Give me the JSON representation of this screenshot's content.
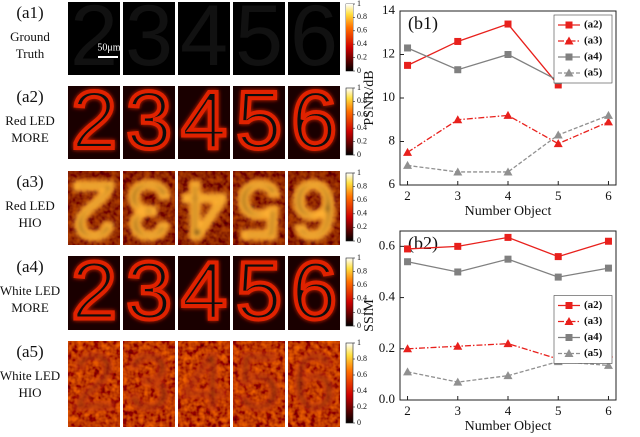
{
  "image_panels": {
    "digits": [
      "2",
      "3",
      "4",
      "5",
      "6"
    ],
    "scale_bar": "50μm",
    "colorbar_ticks": [
      0,
      0.2,
      0.4,
      0.6,
      0.8,
      1
    ],
    "rows": [
      {
        "label": "(a1)",
        "caption": [
          "Ground",
          "Truth"
        ]
      },
      {
        "label": "(a2)",
        "caption": [
          "Red LED",
          "MORE"
        ]
      },
      {
        "label": "(a3)",
        "caption": [
          "Red LED",
          "HIO"
        ]
      },
      {
        "label": "(a4)",
        "caption": [
          "White LED",
          "MORE"
        ]
      },
      {
        "label": "(a5)",
        "caption": [
          "White LED",
          "HIO"
        ]
      }
    ]
  },
  "chart_data": [
    {
      "type": "line",
      "panel_label": "(b1)",
      "x_label": "Number Object",
      "y_label": "PSNR/dB",
      "x": [
        2,
        3,
        4,
        5,
        6
      ],
      "xlim": [
        1.85,
        6.15
      ],
      "xticks": [
        2,
        3,
        4,
        5,
        6
      ],
      "ylim": [
        6,
        14
      ],
      "yticks": [
        6,
        8,
        10,
        12,
        14
      ],
      "legend": "upper right",
      "series": [
        {
          "name": "(a2)",
          "color": "#e8201c",
          "marker": "square",
          "dash": "solid",
          "values": [
            11.5,
            12.6,
            13.4,
            10.6,
            12.6
          ]
        },
        {
          "name": "(a3)",
          "color": "#e8201c",
          "marker": "triangle",
          "dash": "dashdot",
          "values": [
            7.5,
            9.0,
            9.2,
            7.9,
            8.9
          ]
        },
        {
          "name": "(a4)",
          "color": "#808080",
          "marker": "square",
          "dash": "solid",
          "values": [
            12.3,
            11.3,
            12.0,
            10.8,
            11.6
          ]
        },
        {
          "name": "(a5)",
          "color": "#909090",
          "marker": "triangle",
          "dash": "dash",
          "values": [
            6.9,
            6.6,
            6.6,
            8.3,
            9.2
          ]
        }
      ]
    },
    {
      "type": "line",
      "panel_label": "(b2)",
      "x_label": "Number Object",
      "y_label": "SSIM",
      "x": [
        2,
        3,
        4,
        5,
        6
      ],
      "xlim": [
        1.85,
        6.15
      ],
      "xticks": [
        2,
        3,
        4,
        5,
        6
      ],
      "ylim": [
        0,
        0.66
      ],
      "yticks": [
        {
          "value": 0,
          "label": "0.0"
        },
        0.2,
        0.4,
        0.6
      ],
      "legend": "right",
      "series": [
        {
          "name": "(a2)",
          "color": "#e8201c",
          "marker": "square",
          "dash": "solid",
          "values": [
            0.59,
            0.6,
            0.635,
            0.56,
            0.62
          ]
        },
        {
          "name": "(a3)",
          "color": "#e8201c",
          "marker": "triangle",
          "dash": "dashdot",
          "values": [
            0.2,
            0.21,
            0.22,
            0.16,
            0.18
          ]
        },
        {
          "name": "(a4)",
          "color": "#808080",
          "marker": "square",
          "dash": "solid",
          "values": [
            0.54,
            0.5,
            0.55,
            0.48,
            0.515
          ]
        },
        {
          "name": "(a5)",
          "color": "#909090",
          "marker": "triangle",
          "dash": "dash",
          "values": [
            0.11,
            0.07,
            0.095,
            0.15,
            0.135
          ]
        }
      ]
    }
  ]
}
